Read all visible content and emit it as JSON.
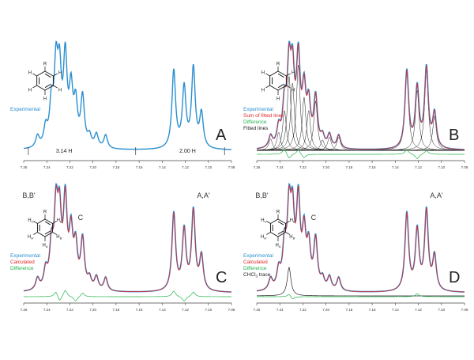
{
  "colors": {
    "experimental": "#2a8fd0",
    "calculated": "#e2262c",
    "difference": "#22b34a",
    "fitted": "#222222",
    "axis": "#444444"
  },
  "chart_data": [
    {
      "panel": "A",
      "type": "line",
      "panel_label": "A",
      "legend": [
        {
          "text": "Experimental",
          "color_key": "experimental"
        }
      ],
      "peak_labels": [],
      "integrals": [
        {
          "text": "3.14 H",
          "x": 7.225
        },
        {
          "text": "2.00 H",
          "x": 7.118
        }
      ],
      "xlim": [
        7.26,
        7.08
      ],
      "xticks": [
        7.26,
        7.24,
        7.22,
        7.2,
        7.18,
        7.16,
        7.14,
        7.12,
        7.1,
        7.08
      ],
      "x_tick_labels": [
        "7.26",
        "7.24",
        "7.22",
        "7.20",
        "7.18",
        "7.16",
        "7.14",
        "7.12",
        "7.10",
        "7.08"
      ],
      "peaks": {
        "experimental": [
          [
            7.248,
            0.12
          ],
          [
            7.241,
            0.19
          ],
          [
            7.236,
            0.42
          ],
          [
            7.232,
            0.78
          ],
          [
            7.229,
            0.71
          ],
          [
            7.224,
            0.9
          ],
          [
            7.219,
            0.56
          ],
          [
            7.215,
            0.42
          ],
          [
            7.209,
            0.52
          ],
          [
            7.203,
            0.11
          ],
          [
            7.197,
            0.14
          ],
          [
            7.189,
            0.14
          ],
          [
            7.13,
            0.82
          ],
          [
            7.121,
            0.63
          ],
          [
            7.113,
            0.84
          ],
          [
            7.106,
            0.36
          ]
        ]
      }
    },
    {
      "panel": "B",
      "type": "line",
      "panel_label": "B",
      "legend": [
        {
          "text": "Experimental",
          "color_key": "experimental"
        },
        {
          "text": "Sum of fitted lines",
          "color_key": "calculated"
        },
        {
          "text": "Difference",
          "color_key": "difference"
        },
        {
          "text": "Fitted lines",
          "color_key": "fitted"
        }
      ],
      "peak_labels": [],
      "integrals": [],
      "xlim": [
        7.26,
        7.08
      ],
      "xticks": [
        7.26,
        7.24,
        7.22,
        7.2,
        7.18,
        7.16,
        7.14,
        7.12,
        7.1,
        7.08
      ],
      "x_tick_labels": [
        "7.26",
        "7.24",
        "7.22",
        "7.20",
        "7.18",
        "7.16",
        "7.14",
        "7.12",
        "7.10",
        "7.08"
      ],
      "peaks": {
        "experimental": [
          [
            7.248,
            0.12
          ],
          [
            7.241,
            0.19
          ],
          [
            7.236,
            0.42
          ],
          [
            7.232,
            0.78
          ],
          [
            7.229,
            0.71
          ],
          [
            7.224,
            0.9
          ],
          [
            7.219,
            0.56
          ],
          [
            7.215,
            0.42
          ],
          [
            7.209,
            0.52
          ],
          [
            7.203,
            0.11
          ],
          [
            7.197,
            0.14
          ],
          [
            7.189,
            0.14
          ],
          [
            7.13,
            0.82
          ],
          [
            7.121,
            0.63
          ],
          [
            7.113,
            0.84
          ],
          [
            7.106,
            0.36
          ]
        ],
        "difference": [
          [
            7.236,
            0.06
          ],
          [
            7.232,
            -0.05
          ],
          [
            7.224,
            0.05
          ],
          [
            7.219,
            -0.04
          ],
          [
            7.13,
            0.05
          ],
          [
            7.121,
            -0.05
          ],
          [
            7.113,
            0.04
          ]
        ]
      }
    },
    {
      "panel": "C",
      "type": "line",
      "panel_label": "C",
      "legend": [
        {
          "text": "Experimental",
          "color_key": "experimental"
        },
        {
          "text": "Calculated",
          "color_key": "calculated"
        },
        {
          "text": "Difference",
          "color_key": "difference"
        }
      ],
      "peak_labels": [
        {
          "text": "B,B'",
          "x": 7.246
        },
        {
          "text": "C",
          "x": 7.219
        },
        {
          "text": "A,A'",
          "x": 7.118
        }
      ],
      "integrals": [],
      "xlim": [
        7.26,
        7.08
      ],
      "xticks": [
        7.26,
        7.24,
        7.22,
        7.2,
        7.18,
        7.16,
        7.14,
        7.12,
        7.1,
        7.08
      ],
      "x_tick_labels": [
        "7.26",
        "7.24",
        "7.22",
        "7.20",
        "7.18",
        "7.16",
        "7.14",
        "7.12",
        "7.10",
        "7.08"
      ],
      "peaks": {
        "experimental": [
          [
            7.248,
            0.12
          ],
          [
            7.241,
            0.19
          ],
          [
            7.236,
            0.42
          ],
          [
            7.232,
            0.78
          ],
          [
            7.229,
            0.71
          ],
          [
            7.224,
            0.9
          ],
          [
            7.219,
            0.56
          ],
          [
            7.215,
            0.42
          ],
          [
            7.209,
            0.52
          ],
          [
            7.203,
            0.11
          ],
          [
            7.197,
            0.14
          ],
          [
            7.189,
            0.14
          ],
          [
            7.13,
            0.82
          ],
          [
            7.121,
            0.63
          ],
          [
            7.113,
            0.84
          ],
          [
            7.106,
            0.36
          ]
        ],
        "difference": [
          [
            7.232,
            0.06
          ],
          [
            7.229,
            -0.06
          ],
          [
            7.224,
            0.07
          ],
          [
            7.215,
            -0.05
          ],
          [
            7.209,
            0.04
          ],
          [
            7.13,
            0.06
          ],
          [
            7.121,
            -0.05
          ],
          [
            7.113,
            0.05
          ]
        ]
      }
    },
    {
      "panel": "D",
      "type": "line",
      "panel_label": "D",
      "legend": [
        {
          "text": "Experimental",
          "color_key": "experimental"
        },
        {
          "text": "Calculated",
          "color_key": "calculated"
        },
        {
          "text": "Difference",
          "color_key": "difference"
        },
        {
          "text": "CHCl",
          "sub": "3",
          "tail": " trace",
          "color_key": "fitted"
        }
      ],
      "peak_labels": [
        {
          "text": "B,B'",
          "x": 7.246
        },
        {
          "text": "C",
          "x": 7.219
        },
        {
          "text": "A,A'",
          "x": 7.118
        }
      ],
      "integrals": [],
      "xlim": [
        7.26,
        7.08
      ],
      "xticks": [
        7.26,
        7.24,
        7.22,
        7.2,
        7.18,
        7.16,
        7.14,
        7.12,
        7.1,
        7.08
      ],
      "x_tick_labels": [
        "7.26",
        "7.24",
        "7.22",
        "7.20",
        "7.18",
        "7.16",
        "7.14",
        "7.12",
        "7.10",
        "7.08"
      ],
      "peaks": {
        "experimental": [
          [
            7.248,
            0.12
          ],
          [
            7.241,
            0.19
          ],
          [
            7.236,
            0.42
          ],
          [
            7.232,
            0.78
          ],
          [
            7.229,
            0.71
          ],
          [
            7.224,
            0.9
          ],
          [
            7.219,
            0.56
          ],
          [
            7.215,
            0.42
          ],
          [
            7.209,
            0.52
          ],
          [
            7.203,
            0.11
          ],
          [
            7.197,
            0.14
          ],
          [
            7.189,
            0.14
          ],
          [
            7.13,
            0.82
          ],
          [
            7.121,
            0.63
          ],
          [
            7.113,
            0.84
          ],
          [
            7.106,
            0.36
          ]
        ],
        "difference": [
          [
            7.232,
            0.03
          ],
          [
            7.229,
            -0.03
          ],
          [
            7.121,
            0.03
          ]
        ],
        "chcl3": [
          [
            7.232,
            0.3
          ]
        ]
      }
    }
  ],
  "molecule": {
    "simple": {
      "top": "R",
      "ring": [
        "H",
        "H",
        "H",
        "H",
        "H"
      ]
    },
    "labelled": {
      "top": "R",
      "ring": [
        "H",
        "H",
        "H",
        "H",
        "H"
      ],
      "subs": [
        "B",
        "B'",
        "A",
        "A'",
        "C"
      ]
    }
  }
}
